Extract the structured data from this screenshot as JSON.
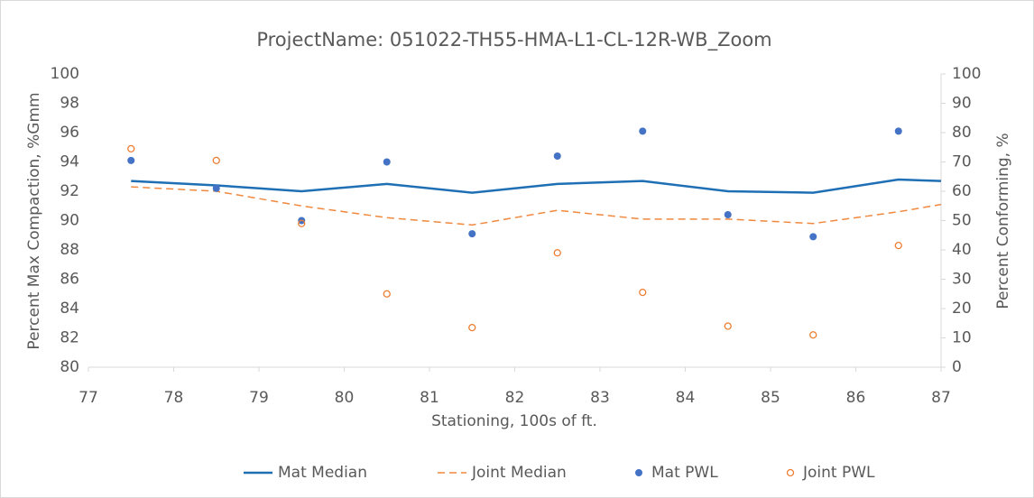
{
  "chart_data": {
    "type": "line",
    "title": "ProjectName: 051022-TH55-HMA-L1-CL-12R-WB_Zoom",
    "xlabel": "Stationing, 100s of ft.",
    "ylabel": "Percent Max Compaction, %Gmm",
    "y2label": "Percent Conforming, %",
    "xlim": [
      77,
      87
    ],
    "xticks": [
      77,
      78,
      79,
      80,
      81,
      82,
      83,
      84,
      85,
      86,
      87
    ],
    "ylim": [
      80,
      100
    ],
    "yticks": [
      80,
      82,
      84,
      86,
      88,
      90,
      92,
      94,
      96,
      98,
      100
    ],
    "y2lim": [
      0,
      100
    ],
    "y2ticks": [
      0,
      10,
      20,
      30,
      40,
      50,
      60,
      70,
      80,
      90,
      100
    ],
    "series": [
      {
        "name": "Mat Median",
        "type": "line",
        "color": "#1f6fb5",
        "dash": false,
        "x": [
          77.5,
          78.5,
          79.5,
          80.5,
          81.5,
          82.5,
          83.5,
          84.5,
          85.5,
          86.5,
          87
        ],
        "values": [
          92.7,
          92.4,
          92.0,
          92.5,
          91.9,
          92.5,
          92.7,
          92.0,
          91.9,
          92.8,
          92.7
        ]
      },
      {
        "name": "Joint Median",
        "type": "line",
        "color": "#f0883e",
        "dash": true,
        "x": [
          77.5,
          78.5,
          79.5,
          80.5,
          81.5,
          82.5,
          83.5,
          84.5,
          85.5,
          86.5,
          87
        ],
        "values": [
          92.3,
          92.0,
          91.0,
          90.2,
          89.7,
          90.7,
          90.1,
          90.1,
          89.8,
          90.6,
          91.1
        ]
      },
      {
        "name": "Mat PWL",
        "type": "scatter",
        "axis": "y2",
        "color": "#4472c4",
        "filled": true,
        "x": [
          77.5,
          78.5,
          79.5,
          80.5,
          81.5,
          82.5,
          83.5,
          84.5,
          85.5,
          86.5
        ],
        "values": [
          70.5,
          61,
          50,
          70,
          45.5,
          72,
          80.5,
          52,
          44.5,
          80.5
        ]
      },
      {
        "name": "Joint PWL",
        "type": "scatter",
        "axis": "y2",
        "color": "#ed7d31",
        "filled": false,
        "x": [
          77.5,
          78.5,
          79.5,
          80.5,
          81.5,
          82.5,
          83.5,
          84.5,
          85.5,
          86.5
        ],
        "values": [
          74.5,
          70.5,
          49,
          25,
          13.5,
          39,
          25.5,
          14,
          11,
          41.5
        ]
      }
    ]
  }
}
